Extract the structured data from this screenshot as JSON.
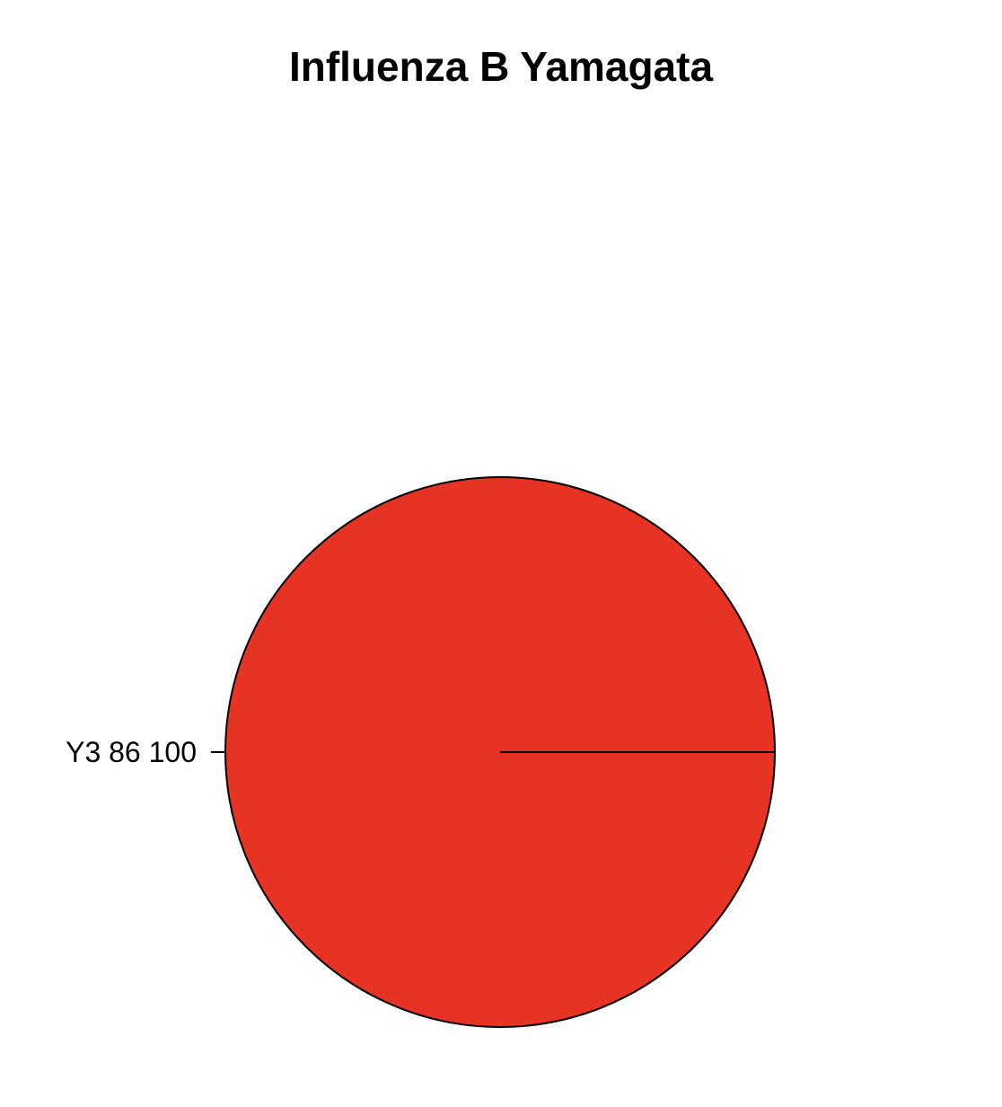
{
  "chart_data": {
    "type": "pie",
    "title": "Influenza B Yamagata",
    "slices": [
      {
        "label": "Y3 86 100",
        "value": 100,
        "color": "#e73323"
      }
    ],
    "start_angle_deg": 0,
    "direction": "counterclockwise",
    "outline_color": "#000000"
  }
}
